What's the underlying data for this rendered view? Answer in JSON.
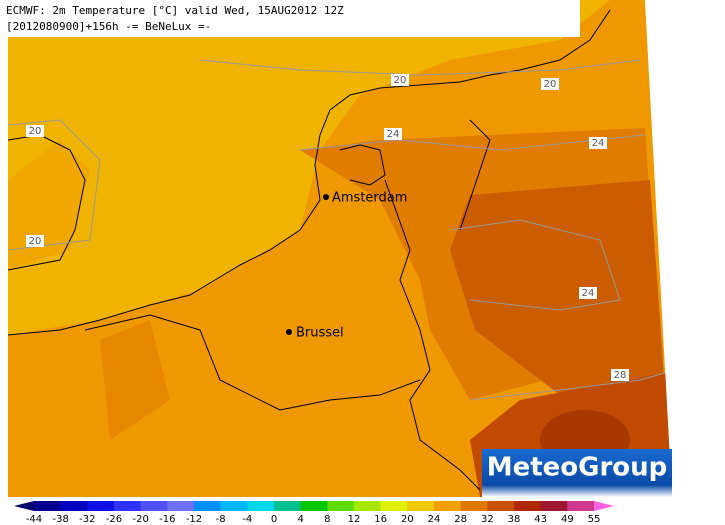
{
  "header": {
    "line1": "ECMWF: 2m Temperature [°C] valid Wed, 15AUG2012 12Z",
    "line2": "[2012080900]+156h  -= BeNeLux =-"
  },
  "cities": [
    {
      "label": "Amsterdam"
    },
    {
      "label": "Brussel"
    }
  ],
  "contour_labels": [
    20,
    20,
    20,
    20,
    24,
    24,
    24,
    28
  ],
  "colorbar": {
    "ticks": [
      -44,
      -38,
      -32,
      -26,
      -20,
      -16,
      -12,
      -8,
      -4,
      0,
      4,
      8,
      12,
      16,
      20,
      24,
      28,
      32,
      38,
      43,
      49,
      55
    ],
    "colors": [
      "#000090",
      "#0000c0",
      "#1010e8",
      "#3030ff",
      "#5050ff",
      "#7070ff",
      "#0090ff",
      "#00b8ff",
      "#00d8e8",
      "#00c090",
      "#00c800",
      "#60dc00",
      "#a8e800",
      "#e0f000",
      "#f0c800",
      "#f0a000",
      "#e07800",
      "#c85000",
      "#b02800",
      "#a01830",
      "#d03890"
    ],
    "arrow_colors": [
      "#000070",
      "#ff60e0"
    ]
  },
  "logo": "MeteoGroup"
}
